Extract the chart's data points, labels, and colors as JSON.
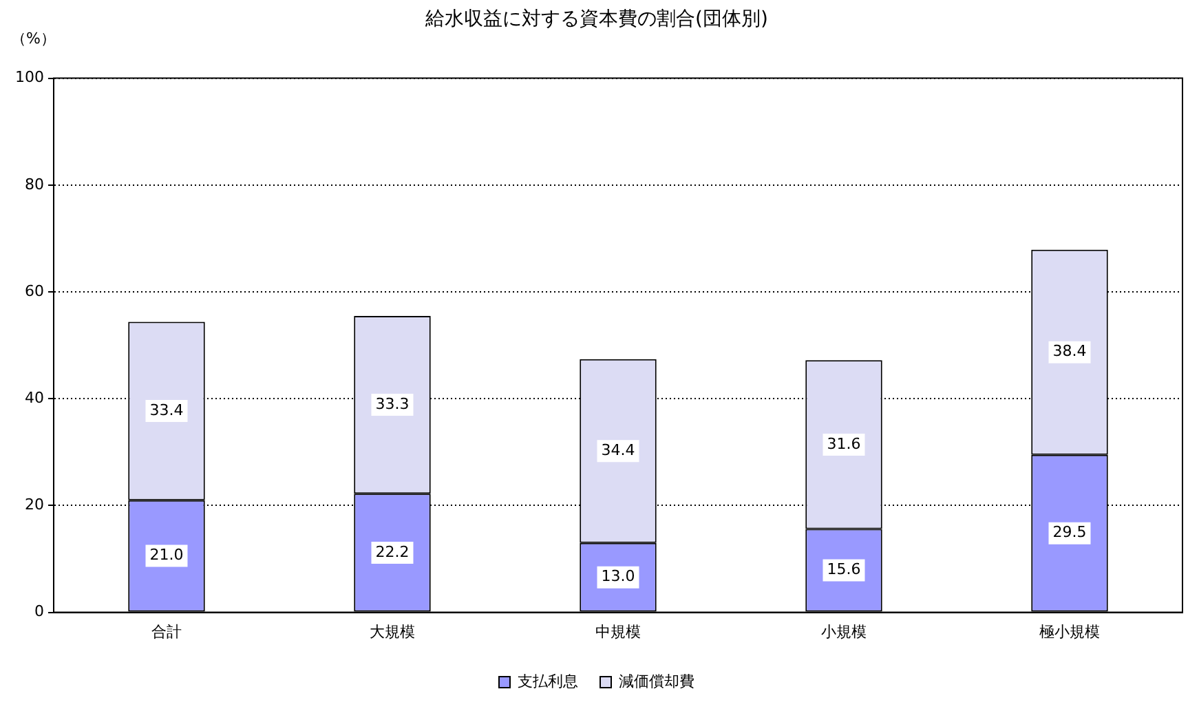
{
  "chart_data": {
    "type": "bar",
    "title": "給水収益に対する資本費の割合(団体別)",
    "ylabel": "（%）",
    "categories": [
      "合計",
      "大規模",
      "中規模",
      "小規模",
      "極小規模"
    ],
    "series": [
      {
        "name": "支払利息",
        "color": "#9999ff",
        "values": [
          21.0,
          22.2,
          13.0,
          15.6,
          29.5
        ],
        "value_labels": [
          "21.0",
          "22.2",
          "13.0",
          "15.6",
          "29.5"
        ]
      },
      {
        "name": "減価償却費",
        "color": "#dcdcf4",
        "values": [
          33.4,
          33.3,
          34.4,
          31.6,
          38.4
        ],
        "value_labels": [
          "33.4",
          "33.3",
          "34.4",
          "31.6",
          "38.4"
        ]
      }
    ],
    "stacked": true,
    "ylim": [
      0,
      100
    ],
    "yticks": [
      0,
      20,
      40,
      60,
      80,
      100
    ],
    "grid": "y",
    "legend": "bottom"
  }
}
